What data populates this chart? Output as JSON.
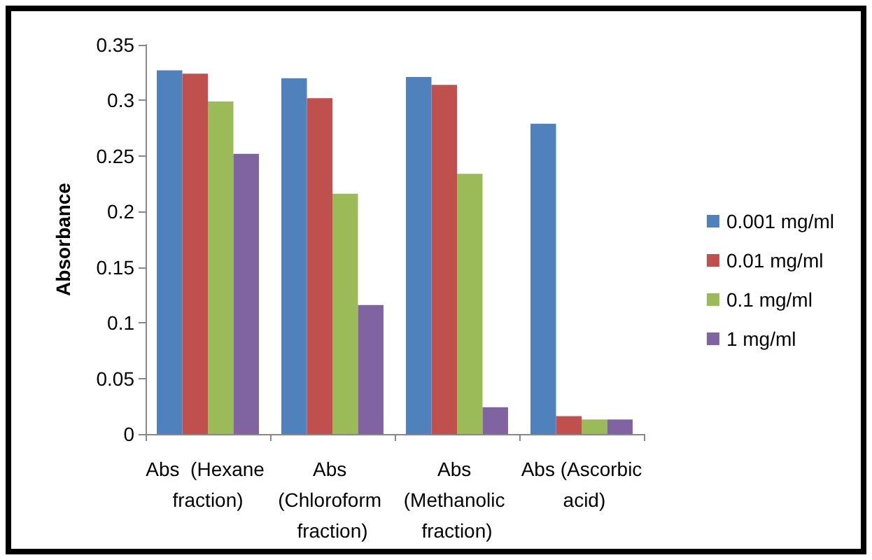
{
  "chart_data": {
    "type": "bar",
    "ylabel": "Absorbance",
    "categories": [
      "Abs  (Hexane fraction)",
      "Abs (Chloroform fraction)",
      "Abs (Methanolic fraction)",
      "Abs (Ascorbic acid)"
    ],
    "series": [
      {
        "name": "0.001 mg/ml",
        "color": "#4f81bd",
        "values": [
          0.327,
          0.32,
          0.321,
          0.279
        ]
      },
      {
        "name": "0.01 mg/ml",
        "color": "#c0504d",
        "values": [
          0.324,
          0.302,
          0.314,
          0.016
        ]
      },
      {
        "name": "0.1 mg/ml",
        "color": "#9bbb59",
        "values": [
          0.299,
          0.216,
          0.234,
          0.013
        ]
      },
      {
        "name": "1 mg/ml",
        "color": "#8064a2",
        "values": [
          0.252,
          0.116,
          0.024,
          0.013
        ]
      }
    ],
    "ylim": [
      0,
      0.35
    ],
    "yticks": [
      0,
      0.05,
      0.1,
      0.15,
      0.2,
      0.25,
      0.3,
      0.35
    ],
    "grid": false,
    "legend": "right"
  }
}
